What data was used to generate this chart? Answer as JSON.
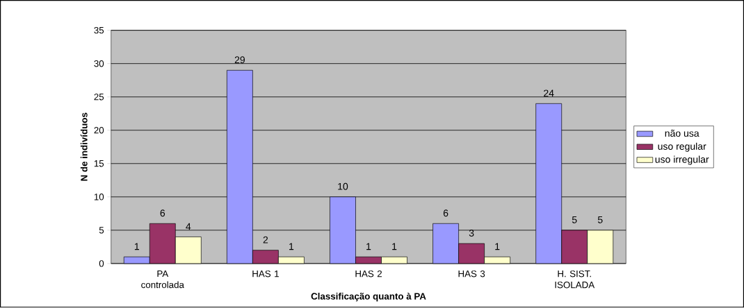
{
  "chart_data": {
    "type": "bar",
    "xlabel": "Classificação quanto à PA",
    "ylabel": "N de indivíduos",
    "categories": [
      "PA controlada",
      "HAS 1",
      "HAS 2",
      "HAS 3",
      "H. SIST. ISOLADA"
    ],
    "series": [
      {
        "name": "não usa",
        "color": "#9999ff",
        "values": [
          1,
          29,
          10,
          6,
          24
        ]
      },
      {
        "name": "uso regular",
        "color": "#993366",
        "values": [
          6,
          2,
          1,
          3,
          5
        ]
      },
      {
        "name": "uso irregular",
        "color": "#ffffcc",
        "values": [
          4,
          1,
          1,
          1,
          5
        ]
      }
    ],
    "ylim": [
      0,
      35
    ],
    "yticks": [
      0,
      5,
      10,
      15,
      20,
      25,
      30,
      35
    ],
    "grid": "y",
    "legend": "right",
    "data_labels": true
  }
}
